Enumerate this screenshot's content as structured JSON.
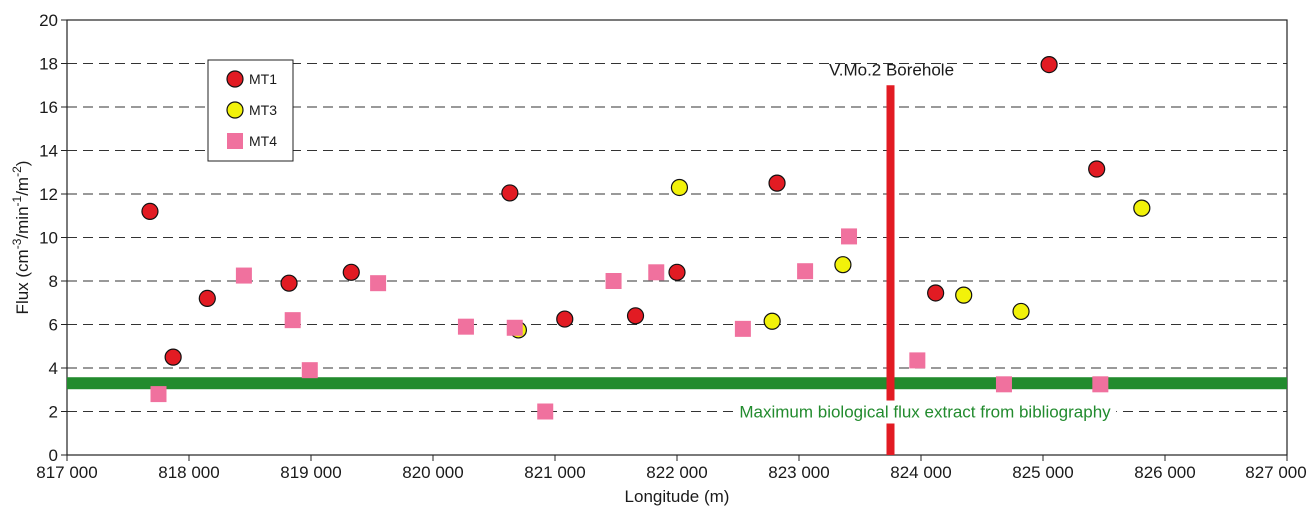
{
  "chart_data": {
    "type": "scatter",
    "title": "",
    "xlabel": "Longitude (m)",
    "ylabel_parts": [
      "Flux (cm",
      "-3",
      "/min",
      "-1",
      "/m",
      "-2",
      ")"
    ],
    "xlim": [
      817000,
      827000
    ],
    "ylim": [
      0,
      20
    ],
    "x_ticks": [
      817000,
      818000,
      819000,
      820000,
      821000,
      822000,
      823000,
      824000,
      825000,
      826000,
      827000
    ],
    "x_tick_labels": [
      "817 000",
      "818 000",
      "819 000",
      "820 000",
      "821 000",
      "822 000",
      "823 000",
      "824 000",
      "825 000",
      "826 000",
      "827 000"
    ],
    "y_ticks": [
      0,
      2,
      4,
      6,
      8,
      10,
      12,
      14,
      16,
      18,
      20
    ],
    "y_tick_labels": [
      "0",
      "2",
      "4",
      "6",
      "8",
      "10",
      "12",
      "14",
      "16",
      "18",
      "20"
    ],
    "grid": "horizontal dashed",
    "legend_position": "top-left",
    "series": [
      {
        "name": "MT1",
        "marker": "circle",
        "color": "#e21b23",
        "points": [
          [
            817680,
            11.2
          ],
          [
            817870,
            4.5
          ],
          [
            818150,
            7.2
          ],
          [
            818820,
            7.9
          ],
          [
            819330,
            8.4
          ],
          [
            820630,
            12.05
          ],
          [
            821080,
            6.25
          ],
          [
            821660,
            6.4
          ],
          [
            822000,
            8.4
          ],
          [
            822820,
            12.5
          ],
          [
            824120,
            7.45
          ],
          [
            825050,
            17.95
          ],
          [
            825440,
            13.15
          ]
        ]
      },
      {
        "name": "MT3",
        "marker": "circle",
        "color": "#f2f20a",
        "points": [
          [
            820700,
            5.75
          ],
          [
            822020,
            12.3
          ],
          [
            822780,
            6.15
          ],
          [
            823360,
            8.75
          ],
          [
            824350,
            7.35
          ],
          [
            824820,
            6.6
          ],
          [
            825810,
            11.35
          ]
        ]
      },
      {
        "name": "MT4",
        "marker": "square",
        "color": "#f0719e",
        "points": [
          [
            817750,
            2.8
          ],
          [
            818450,
            8.25
          ],
          [
            818850,
            6.2
          ],
          [
            818990,
            3.9
          ],
          [
            819550,
            7.9
          ],
          [
            820270,
            5.9
          ],
          [
            820670,
            5.85
          ],
          [
            820920,
            2.0
          ],
          [
            821480,
            8.0
          ],
          [
            821830,
            8.4
          ],
          [
            822540,
            5.8
          ],
          [
            823050,
            8.45
          ],
          [
            823410,
            10.05
          ],
          [
            823970,
            4.35
          ],
          [
            824680,
            3.25
          ],
          [
            825470,
            3.25
          ]
        ]
      }
    ],
    "annotations": {
      "band": {
        "label": "Maximum biological flux extract from bibliography",
        "y": 3.3,
        "color": "#228b2e"
      },
      "borehole": {
        "label": "V.Mo.2 Borehole",
        "x": 823750,
        "y_top": 17.0,
        "color": "#e21b23"
      }
    }
  }
}
